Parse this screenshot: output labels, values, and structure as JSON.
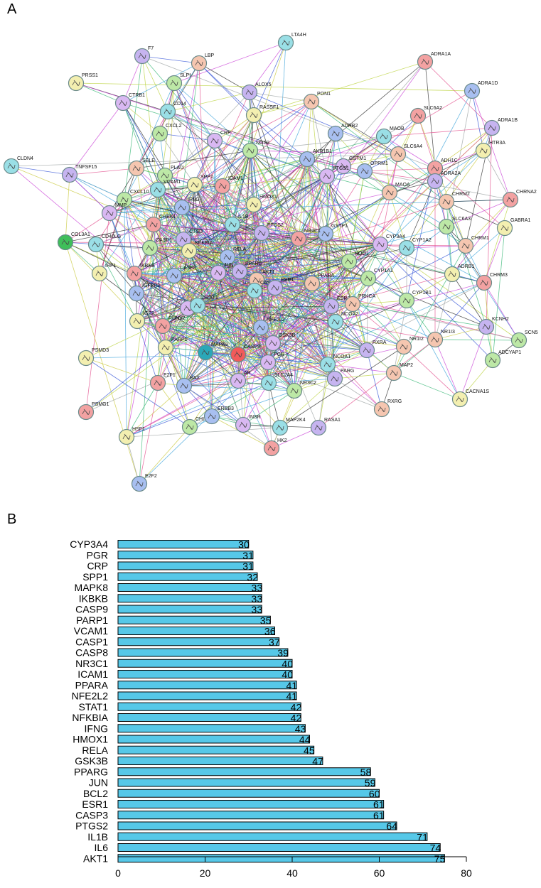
{
  "panels": {
    "a_label": "A",
    "b_label": "B"
  },
  "colors": {
    "node_palette": [
      "#9adfe6",
      "#c6b4f0",
      "#f5c6b0",
      "#bde8a6",
      "#f3efb0",
      "#f3a2a2",
      "#a8bff0",
      "#d9b8f2"
    ],
    "bar_fill": "#56c8e8",
    "bar_stroke": "#000000",
    "edge_palette": [
      "#b9d23a",
      "#2a2a2a",
      "#c83dd6",
      "#3aa2d9",
      "#2f4fd6",
      "#33b573",
      "#9aa0a0",
      "#e24a8a",
      "#c8c83a"
    ]
  },
  "network": {
    "nodes": [
      "LTA4H",
      "F7",
      "LBP",
      "SLPI",
      "PRSS1",
      "ADRA1A",
      "ADRA1D",
      "CTRB1",
      "CD14",
      "ALOX5",
      "PON1",
      "CXCL2",
      "RASSF1",
      "SLC6A2",
      "ADRB2",
      "CRP",
      "MAOB",
      "ADRA1B",
      "SLC6A4",
      "NOS2",
      "HTR3A",
      "ADH1C",
      "AKR1B1",
      "GSTM1",
      "CLDN4",
      "TNFSF15",
      "SELE",
      "PLAU",
      "SPP1",
      "ICAM1",
      "OPRM1",
      "PTGS1",
      "VCAM1",
      "ADRA2A",
      "MAOA",
      "CXCL10",
      "HMOX1",
      "CHRNA2",
      "IFNG",
      "MMP",
      "IL1B",
      "PTGS2",
      "CHRM2",
      "SLC6A3",
      "GABRA1",
      "CHEK1",
      "GSTP1",
      "COL3A1",
      "CD40LG",
      "CTSD",
      "CHRM1",
      "CASP1",
      "NFKBIA",
      "NR3C1",
      "RELA",
      "CYP3A4",
      "CYP1A2",
      "PPARG",
      "AKT1",
      "NQO1",
      "IRF1",
      "IKBKB",
      "CASP8",
      "JUN",
      "CASP3",
      "ESR1",
      "PPARA",
      "CYP1A1",
      "ADRB1",
      "CHRM3",
      "IGFBP3",
      "KDR",
      "STAT1",
      "ESR2",
      "PRKCA",
      "CYP1B1",
      "IGF2",
      "RUNX2",
      "NFE2L2",
      "GSK3B",
      "NCOA2",
      "KCNH2",
      "NR1I3",
      "SCN5",
      "PARP1",
      "MAPK8",
      "CASP9",
      "PGR",
      "NCOA1",
      "RXRA",
      "NR1I2",
      "ADCYAP1",
      "PSMD3",
      "E2F1",
      "BAX",
      "AR",
      "SLC2A4",
      "PARG",
      "MAP2",
      "NR3C2",
      "CACNA1S",
      "PSMG1",
      "ERBB3",
      "INSR",
      "MAP2K4",
      "RASA1",
      "RXRG",
      "CHI",
      "HSF1",
      "HK2",
      "E2F2"
    ]
  },
  "chart_data": {
    "type": "bar",
    "orientation": "horizontal",
    "categories": [
      "CYP3A4",
      "PGR",
      "CRP",
      "SPP1",
      "MAPK8",
      "IKBKB",
      "CASP9",
      "PARP1",
      "VCAM1",
      "CASP1",
      "CASP8",
      "NR3C1",
      "ICAM1",
      "PPARA",
      "NFE2L2",
      "STAT1",
      "NFKBIA",
      "IFNG",
      "HMOX1",
      "RELA",
      "GSK3B",
      "PPARG",
      "JUN",
      "BCL2",
      "ESR1",
      "CASP3",
      "PTGS2",
      "IL1B",
      "IL6",
      "AKT1"
    ],
    "values": [
      30,
      31,
      31,
      32,
      33,
      33,
      33,
      35,
      36,
      37,
      39,
      40,
      40,
      41,
      41,
      42,
      42,
      43,
      44,
      45,
      47,
      58,
      59,
      60,
      61,
      61,
      64,
      71,
      74,
      75
    ],
    "xlim": [
      0,
      80
    ],
    "x_ticks": [
      0,
      20,
      40,
      60,
      80
    ],
    "x_tick_labels": [
      "0",
      "20",
      "40",
      "60",
      "80"
    ],
    "title": "",
    "xlabel": "",
    "ylabel": ""
  }
}
